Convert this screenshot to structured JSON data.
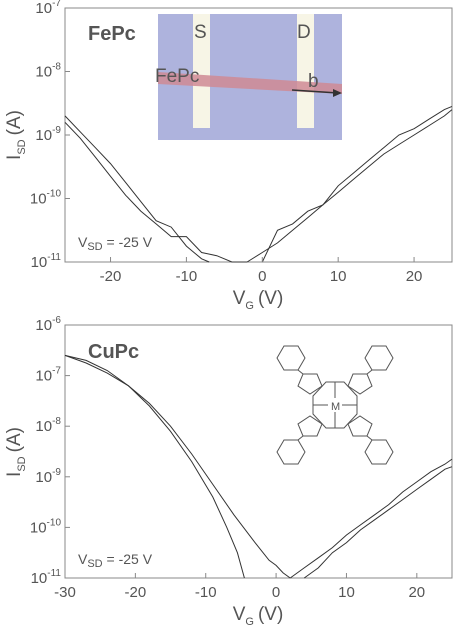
{
  "chart_data": [
    {
      "type": "line",
      "panel_label": "FePc",
      "xlabel": "V",
      "xlabel_sub": "G",
      "xlabel_unit": "(V)",
      "ylabel": "I",
      "ylabel_sub": "SD",
      "ylabel_unit": "(A)",
      "xlim": [
        -26,
        25
      ],
      "ylim": [
        -11,
        -7
      ],
      "yscale": "log",
      "xticks": [
        -20,
        -10,
        0,
        10,
        20
      ],
      "xtick_labels": [
        "-20",
        "-10",
        "0",
        "10",
        "20"
      ],
      "yticks": [
        -11,
        -10,
        -9,
        -8,
        -7
      ],
      "ytick_labels": [
        {
          "base": "10",
          "exp": "-11"
        },
        {
          "base": "10",
          "exp": "-10"
        },
        {
          "base": "10",
          "exp": "-9"
        },
        {
          "base": "10",
          "exp": "-8"
        },
        {
          "base": "10",
          "exp": "-7"
        }
      ],
      "annotation": {
        "prefix": "V",
        "sub": "SD",
        "text": " = -25 V"
      },
      "inset": {
        "electrode_left": "S",
        "electrode_right": "D",
        "ribbon_label": "FePc",
        "arrow_label": "b"
      },
      "series": [
        {
          "x": [
            -26,
            -24,
            -22,
            -20,
            -18,
            -16,
            -14,
            -12,
            -10,
            -9,
            -8,
            -7
          ],
          "log_y": [
            -8.7,
            -8.95,
            -9.2,
            -9.45,
            -9.75,
            -10.05,
            -10.35,
            -10.45,
            -10.75,
            -10.85,
            -10.95,
            -11.0
          ]
        },
        {
          "x": [
            -26,
            -24,
            -22,
            -20,
            -18,
            -16,
            -14,
            -12,
            -10,
            -8,
            -6,
            -4,
            -2
          ],
          "log_y": [
            -8.8,
            -9.05,
            -9.35,
            -9.65,
            -9.95,
            -10.2,
            -10.4,
            -10.6,
            -10.6,
            -10.85,
            -10.9,
            -11.0,
            -11.0
          ]
        },
        {
          "x": [
            0,
            2,
            4,
            6,
            8,
            10,
            12,
            14,
            16,
            18,
            20,
            22,
            24,
            25
          ],
          "log_y": [
            -11.0,
            -10.5,
            -10.4,
            -10.2,
            -10.1,
            -9.8,
            -9.6,
            -9.4,
            -9.2,
            -9.0,
            -8.9,
            -8.75,
            -8.6,
            -8.55
          ]
        },
        {
          "x": [
            -2,
            0,
            2,
            4,
            6,
            8,
            10,
            12,
            14,
            16,
            18,
            20,
            22,
            24,
            25
          ],
          "log_y": [
            -11.0,
            -10.85,
            -10.7,
            -10.5,
            -10.3,
            -10.1,
            -9.9,
            -9.7,
            -9.5,
            -9.3,
            -9.15,
            -9.0,
            -8.85,
            -8.7,
            -8.6
          ]
        }
      ]
    },
    {
      "type": "line",
      "panel_label": "CuPc",
      "xlabel": "V",
      "xlabel_sub": "G",
      "xlabel_unit": "(V)",
      "ylabel": "I",
      "ylabel_sub": "SD",
      "ylabel_unit": "(A)",
      "xlim": [
        -30,
        25
      ],
      "ylim": [
        -11,
        -6
      ],
      "yscale": "log",
      "xticks": [
        -30,
        -20,
        -10,
        0,
        10,
        20
      ],
      "xtick_labels": [
        "-30",
        "-20",
        "-10",
        "0",
        "10",
        "20"
      ],
      "yticks": [
        -11,
        -10,
        -9,
        -8,
        -7,
        -6
      ],
      "ytick_labels": [
        {
          "base": "10",
          "exp": "-11"
        },
        {
          "base": "10",
          "exp": "-10"
        },
        {
          "base": "10",
          "exp": "-9"
        },
        {
          "base": "10",
          "exp": "-8"
        },
        {
          "base": "10",
          "exp": "-7"
        },
        {
          "base": "10",
          "exp": "-6"
        }
      ],
      "annotation": {
        "prefix": "V",
        "sub": "SD",
        "text": " = -25 V"
      },
      "inset": {
        "metal_label": "M"
      },
      "series": [
        {
          "x": [
            -30,
            -27,
            -24,
            -21,
            -18,
            -15,
            -12,
            -9,
            -7,
            -5.5,
            -4.5
          ],
          "log_y": [
            -6.6,
            -6.75,
            -6.95,
            -7.2,
            -7.6,
            -8.1,
            -8.7,
            -9.4,
            -10.0,
            -10.5,
            -11.0
          ]
        },
        {
          "x": [
            -30,
            -27,
            -24,
            -21,
            -18,
            -15,
            -12,
            -9,
            -6,
            -3,
            -1,
            0,
            1,
            2
          ],
          "log_y": [
            -6.6,
            -6.7,
            -6.9,
            -7.2,
            -7.55,
            -8.0,
            -8.55,
            -9.15,
            -9.75,
            -10.3,
            -10.65,
            -10.75,
            -10.9,
            -11.0
          ]
        },
        {
          "x": [
            2,
            4,
            6,
            8,
            10,
            12,
            14,
            16,
            18,
            20,
            22,
            24,
            25
          ],
          "log_y": [
            -11.0,
            -10.8,
            -10.6,
            -10.4,
            -10.15,
            -9.95,
            -9.75,
            -9.55,
            -9.3,
            -9.1,
            -8.9,
            -8.75,
            -8.65
          ]
        },
        {
          "x": [
            4,
            6,
            8,
            10,
            12,
            14,
            16,
            18,
            20,
            22,
            24,
            25
          ],
          "log_y": [
            -11.0,
            -10.8,
            -10.5,
            -10.3,
            -10.05,
            -9.85,
            -9.65,
            -9.45,
            -9.25,
            -9.05,
            -8.85,
            -8.8
          ]
        }
      ]
    }
  ]
}
